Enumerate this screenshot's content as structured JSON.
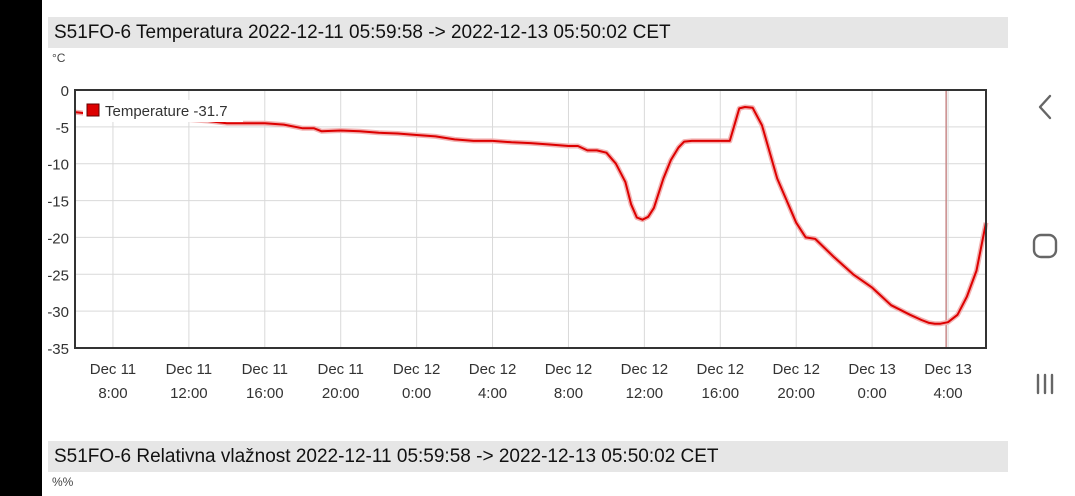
{
  "panels": [
    {
      "title": "S51FO-6 Temperatura 2022-12-11 05:59:58 -> 2022-12-13 05:50:02 CET",
      "unit": "°C"
    },
    {
      "title": "S51FO-6 Relativna vlažnost 2022-12-11 05:59:58 -> 2022-12-13 05:50:02 CET",
      "unit": "%%"
    }
  ],
  "navigation": {
    "back_icon": "chevron-left-icon",
    "home_icon": "rounded-square-icon",
    "recents_icon": "three-bars-icon"
  },
  "chart_data": {
    "type": "line",
    "ylim": [
      -35,
      0
    ],
    "yticks": [
      "0",
      "-5",
      "-10",
      "-15",
      "-20",
      "-25",
      "-30",
      "-35"
    ],
    "xlim_hours": [
      6,
      54
    ],
    "xticks": [
      {
        "line1": "Dec 11",
        "line2": "8:00"
      },
      {
        "line1": "Dec 11",
        "line2": "12:00"
      },
      {
        "line1": "Dec 11",
        "line2": "16:00"
      },
      {
        "line1": "Dec 11",
        "line2": "20:00"
      },
      {
        "line1": "Dec 12",
        "line2": "0:00"
      },
      {
        "line1": "Dec 12",
        "line2": "4:00"
      },
      {
        "line1": "Dec 12",
        "line2": "8:00"
      },
      {
        "line1": "Dec 12",
        "line2": "12:00"
      },
      {
        "line1": "Dec 12",
        "line2": "16:00"
      },
      {
        "line1": "Dec 12",
        "line2": "20:00"
      },
      {
        "line1": "Dec 13",
        "line2": "0:00"
      },
      {
        "line1": "Dec 13",
        "line2": "4:00"
      }
    ],
    "grid": true,
    "legend": "top-left",
    "series": [
      {
        "name": "Temperature",
        "current_value": "-31.7",
        "color": "#dd0000",
        "x": [
          6.0,
          7.0,
          8.0,
          9.0,
          10.0,
          11.0,
          12.0,
          13.0,
          14.0,
          15.0,
          16.0,
          17.0,
          18.0,
          18.6,
          19.0,
          20.0,
          21.0,
          22.0,
          23.0,
          24.0,
          25.0,
          26.0,
          27.0,
          28.0,
          29.0,
          30.0,
          31.0,
          32.0,
          32.5,
          33.0,
          33.5,
          34.0,
          34.5,
          35.0,
          35.3,
          35.6,
          35.9,
          36.2,
          36.5,
          37.0,
          37.4,
          37.8,
          38.1,
          38.5,
          39.0,
          39.5,
          40.0,
          40.5,
          41.0,
          41.3,
          41.7,
          42.2,
          43.0,
          44.0,
          44.5,
          45.0,
          46.0,
          47.0,
          48.0,
          48.5,
          49.0,
          50.0,
          50.6,
          51.0,
          51.3,
          51.6,
          52.0,
          52.5,
          53.0,
          53.5,
          54.0
        ],
        "y": [
          -3.0,
          -3.3,
          -3.6,
          -3.9,
          -3.9,
          -3.9,
          -4.0,
          -4.2,
          -4.5,
          -4.5,
          -4.5,
          -4.7,
          -5.2,
          -5.2,
          -5.6,
          -5.5,
          -5.6,
          -5.8,
          -5.9,
          -6.1,
          -6.3,
          -6.7,
          -6.9,
          -6.9,
          -7.1,
          -7.2,
          -7.4,
          -7.6,
          -7.6,
          -8.2,
          -8.2,
          -8.5,
          -10.0,
          -12.5,
          -15.5,
          -17.3,
          -17.6,
          -17.2,
          -16.0,
          -12.0,
          -9.5,
          -7.8,
          -7.0,
          -6.9,
          -6.9,
          -6.9,
          -6.9,
          -6.9,
          -2.5,
          -2.3,
          -2.4,
          -4.8,
          -12.0,
          -18.0,
          -20.0,
          -20.2,
          -22.7,
          -25.0,
          -26.8,
          -28.0,
          -29.2,
          -30.5,
          -31.2,
          -31.6,
          -31.7,
          -31.7,
          -31.5,
          -30.5,
          -28.0,
          -24.5,
          -18.0
        ]
      }
    ],
    "cursor_x": 51.9
  }
}
